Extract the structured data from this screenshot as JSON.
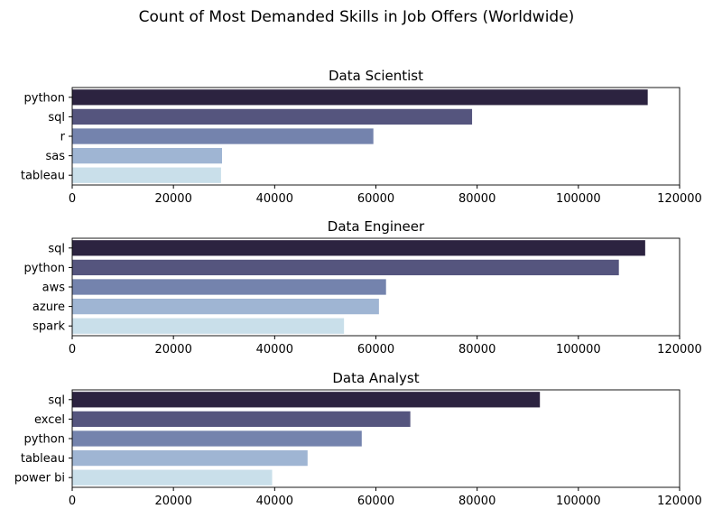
{
  "figure": {
    "title": "Count of Most Demanded Skills in Job Offers (Worldwide)"
  },
  "colors": {
    "palette": [
      "#2c2340",
      "#55557e",
      "#7483ad",
      "#9fb5d3",
      "#c9dfea"
    ],
    "axis": "#000000",
    "background": "#ffffff"
  },
  "chart_data": [
    {
      "type": "bar",
      "orientation": "horizontal",
      "title": "Data Scientist",
      "categories": [
        "python",
        "sql",
        "r",
        "sas",
        "tableau"
      ],
      "values": [
        113700,
        79000,
        59500,
        29600,
        29400
      ],
      "xlim": [
        0,
        120000
      ],
      "xticks": [
        "0",
        "20000",
        "40000",
        "60000",
        "80000",
        "100000",
        "120000"
      ],
      "grid": false
    },
    {
      "type": "bar",
      "orientation": "horizontal",
      "title": "Data Engineer",
      "categories": [
        "sql",
        "python",
        "aws",
        "azure",
        "spark"
      ],
      "values": [
        113200,
        108000,
        62000,
        60600,
        53700
      ],
      "xlim": [
        0,
        120000
      ],
      "xticks": [
        "0",
        "20000",
        "40000",
        "60000",
        "80000",
        "100000",
        "120000"
      ],
      "grid": false
    },
    {
      "type": "bar",
      "orientation": "horizontal",
      "title": "Data Analyst",
      "categories": [
        "sql",
        "excel",
        "python",
        "tableau",
        "power bi"
      ],
      "values": [
        92400,
        66800,
        57200,
        46500,
        39500
      ],
      "xlim": [
        0,
        120000
      ],
      "xticks": [
        "0",
        "20000",
        "40000",
        "60000",
        "80000",
        "100000",
        "120000"
      ],
      "grid": false
    }
  ]
}
